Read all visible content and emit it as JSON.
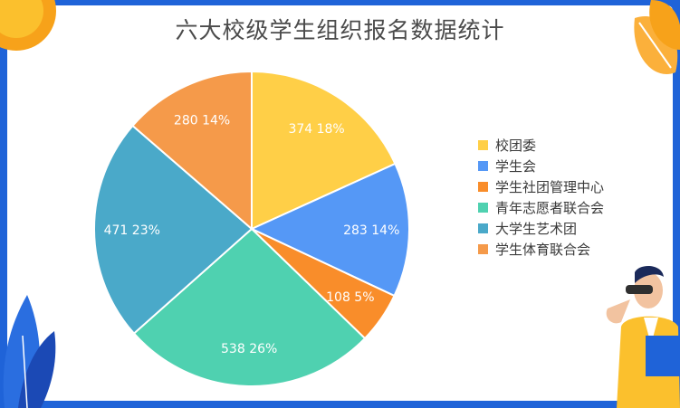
{
  "chart_data": {
    "type": "pie",
    "title": "六大校级学生组织报名数据统计",
    "categories": [
      "校团委",
      "学生会",
      "学生社团管理中心",
      "青年志愿者联合会",
      "大学生艺术团",
      "学生体育联合会"
    ],
    "values": [
      374,
      283,
      108,
      538,
      471,
      280
    ],
    "percent_labels": [
      "18%",
      "14%",
      "5%",
      "26%",
      "23%",
      "14%"
    ],
    "colors": [
      "#ffcf47",
      "#5598f6",
      "#f98d2a",
      "#4fd1b0",
      "#4aa9c9",
      "#f59a4a"
    ],
    "legend_position": "right"
  },
  "decorations": {
    "top-left-sun": "#f7a21a",
    "top-right-leaves": "#fbb03b",
    "bottom-left-plants": "#2a6ee0",
    "bottom-right-person": "#1f63d8"
  }
}
